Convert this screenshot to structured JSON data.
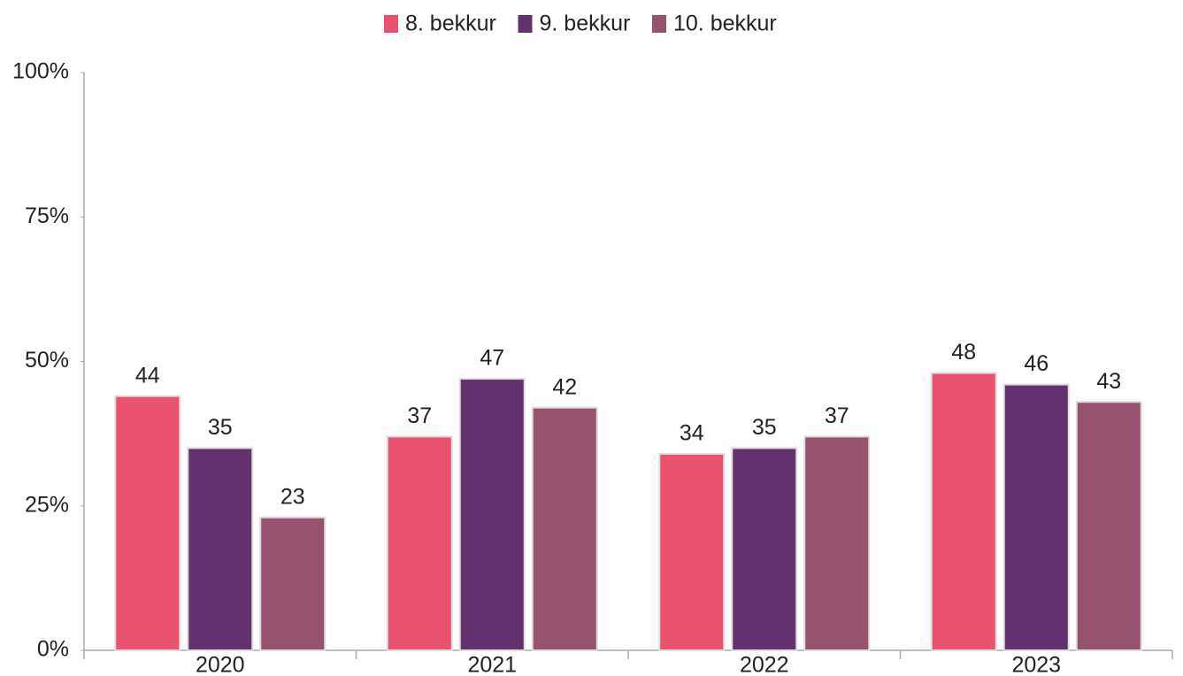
{
  "chart_data": {
    "type": "bar",
    "categories": [
      "2020",
      "2021",
      "2022",
      "2023"
    ],
    "series": [
      {
        "name": "8. bekkur",
        "color": "#e8526e",
        "values": [
          44,
          37,
          34,
          48
        ]
      },
      {
        "name": "9. bekkur",
        "color": "#63316e",
        "values": [
          35,
          47,
          35,
          46
        ]
      },
      {
        "name": "10. bekkur",
        "color": "#96526f",
        "values": [
          23,
          42,
          37,
          43
        ]
      }
    ],
    "ylim": [
      0,
      100
    ],
    "yticks": [
      {
        "value": 0,
        "label": "0%"
      },
      {
        "value": 25,
        "label": "25%"
      },
      {
        "value": 50,
        "label": "50%"
      },
      {
        "value": 75,
        "label": "75%"
      },
      {
        "value": 100,
        "label": "100%"
      }
    ],
    "legend": "top"
  }
}
